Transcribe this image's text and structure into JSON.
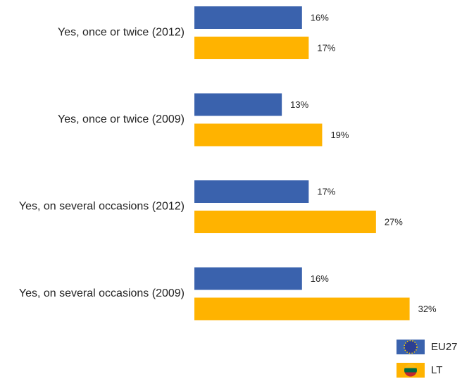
{
  "chart_data": {
    "type": "bar",
    "categories": [
      "Yes, once or twice  (2012)",
      "Yes, once or twice  (2009)",
      "Yes, on several occasions (2012)",
      "Yes, on several occasions (2009)"
    ],
    "series": [
      {
        "name": "EU27",
        "color": "#3a62ad",
        "values": [
          16,
          13,
          17,
          16
        ],
        "value_labels": [
          "16%",
          "13%",
          "17%",
          "16%"
        ]
      },
      {
        "name": "LT",
        "color": "#ffb300",
        "values": [
          17,
          19,
          27,
          32
        ],
        "value_labels": [
          "17%",
          "19%",
          "27%",
          "32%"
        ]
      }
    ]
  }
}
